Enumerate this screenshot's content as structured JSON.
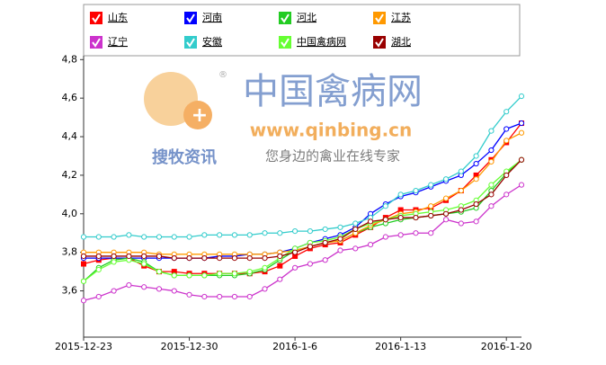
{
  "chart_data": {
    "type": "line",
    "categories": [
      "2015-12-23",
      null,
      null,
      null,
      null,
      null,
      null,
      "2015-12-30",
      null,
      null,
      null,
      null,
      null,
      null,
      "2016-1-6",
      null,
      null,
      null,
      null,
      null,
      null,
      "2016-1-13",
      null,
      null,
      null,
      null,
      null,
      null,
      "2016-1-20",
      null
    ],
    "series": [
      {
        "name": "山东",
        "color": "#ff0000",
        "marker": "square",
        "values": [
          3.74,
          3.76,
          3.77,
          3.77,
          3.73,
          3.7,
          3.7,
          3.69,
          3.69,
          3.69,
          3.69,
          3.69,
          3.7,
          3.73,
          3.78,
          3.82,
          3.84,
          3.85,
          3.89,
          3.93,
          3.98,
          4.02,
          4.02,
          4.03,
          4.07,
          4.12,
          4.2,
          4.28,
          4.37,
          4.47
        ]
      },
      {
        "name": "河南",
        "color": "#0000ff",
        "marker": "circle",
        "values": [
          3.77,
          3.77,
          3.77,
          3.77,
          3.77,
          3.77,
          3.77,
          3.77,
          3.77,
          3.78,
          3.78,
          3.79,
          3.79,
          3.8,
          3.82,
          3.85,
          3.87,
          3.89,
          3.93,
          4.0,
          4.05,
          4.09,
          4.11,
          4.14,
          4.17,
          4.2,
          4.26,
          4.33,
          4.44,
          4.47
        ]
      },
      {
        "name": "河北",
        "color": "#22cc22",
        "marker": "circle",
        "values": [
          3.65,
          3.72,
          3.76,
          3.77,
          3.75,
          3.7,
          3.68,
          3.68,
          3.68,
          3.68,
          3.68,
          3.69,
          3.71,
          3.76,
          3.81,
          3.83,
          3.85,
          3.86,
          3.9,
          3.93,
          3.95,
          3.97,
          3.98,
          3.99,
          4.0,
          4.01,
          4.03,
          4.12,
          4.21,
          4.28
        ]
      },
      {
        "name": "江苏",
        "color": "#ff9900",
        "marker": "circle",
        "values": [
          3.8,
          3.8,
          3.8,
          3.8,
          3.8,
          3.79,
          3.79,
          3.79,
          3.79,
          3.79,
          3.79,
          3.79,
          3.79,
          3.8,
          3.81,
          3.83,
          3.85,
          3.86,
          3.9,
          3.94,
          3.97,
          4.0,
          4.01,
          4.04,
          4.08,
          4.12,
          4.18,
          4.27,
          4.38,
          4.42
        ]
      },
      {
        "name": "辽宁",
        "color": "#cc33cc",
        "marker": "circle",
        "values": [
          3.55,
          3.57,
          3.6,
          3.63,
          3.62,
          3.61,
          3.6,
          3.58,
          3.57,
          3.57,
          3.57,
          3.57,
          3.61,
          3.66,
          3.72,
          3.74,
          3.76,
          3.81,
          3.82,
          3.84,
          3.88,
          3.89,
          3.9,
          3.9,
          3.97,
          3.95,
          3.96,
          4.04,
          4.1,
          4.15
        ]
      },
      {
        "name": "安徽",
        "color": "#33cccc",
        "marker": "circle",
        "values": [
          3.88,
          3.88,
          3.88,
          3.89,
          3.88,
          3.88,
          3.88,
          3.88,
          3.89,
          3.89,
          3.89,
          3.89,
          3.9,
          3.9,
          3.91,
          3.91,
          3.92,
          3.93,
          3.95,
          3.98,
          4.04,
          4.1,
          4.12,
          4.15,
          4.18,
          4.22,
          4.3,
          4.43,
          4.53,
          4.61
        ]
      },
      {
        "name": "中国禽病网",
        "color": "#66ff33",
        "marker": "circle",
        "values": [
          3.65,
          3.71,
          3.75,
          3.76,
          3.74,
          3.7,
          3.68,
          3.68,
          3.68,
          3.69,
          3.69,
          3.7,
          3.72,
          3.77,
          3.82,
          3.85,
          3.86,
          3.88,
          3.92,
          3.95,
          3.97,
          3.99,
          4.0,
          4.01,
          4.02,
          4.04,
          4.07,
          4.15,
          4.22,
          4.28
        ]
      },
      {
        "name": "湖北",
        "color": "#990000",
        "marker": "circle",
        "values": [
          3.78,
          3.78,
          3.78,
          3.78,
          3.78,
          3.78,
          3.77,
          3.77,
          3.77,
          3.77,
          3.77,
          3.77,
          3.77,
          3.78,
          3.8,
          3.83,
          3.85,
          3.87,
          3.92,
          3.96,
          3.97,
          3.98,
          3.98,
          3.99,
          4.0,
          4.02,
          4.05,
          4.1,
          4.2,
          4.28
        ]
      }
    ],
    "ylim": [
      3.36,
      4.82
    ],
    "yticks": [
      {
        "value": 3.6,
        "label": "3,6"
      },
      {
        "value": 3.8,
        "label": "3,8"
      },
      {
        "value": 4.0,
        "label": "4,0"
      },
      {
        "value": 4.2,
        "label": "4,2"
      },
      {
        "value": 4.4,
        "label": "4,4"
      },
      {
        "value": 4.6,
        "label": "4,6"
      },
      {
        "value": 4.8,
        "label": "4,8"
      }
    ],
    "watermark": {
      "site": "中国禽病网",
      "url": "www.qinbing.cn",
      "brand": "搜牧资讯",
      "slogan": "您身边的禽业在线专家"
    }
  }
}
